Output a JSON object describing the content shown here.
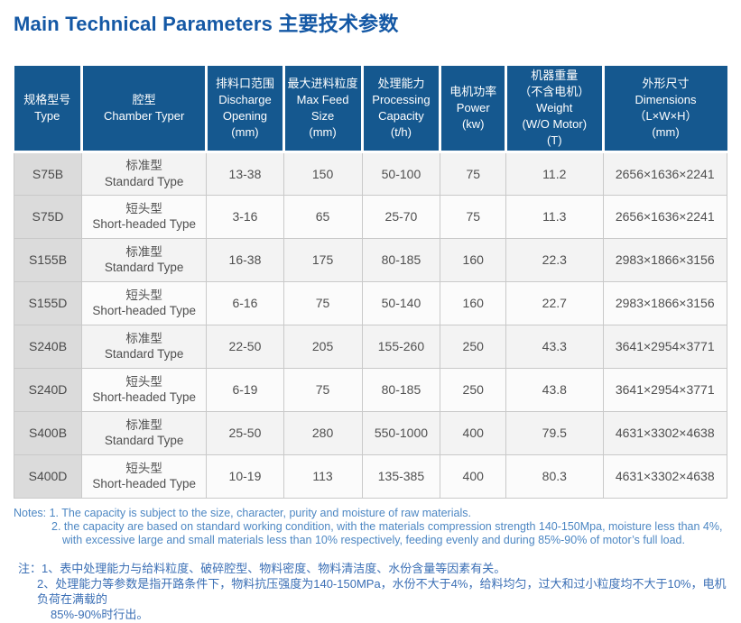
{
  "page": {
    "title": "Main Technical Parameters 主要技术参数"
  },
  "table": {
    "headers": [
      "规格型号\nType",
      "腔型\nChamber Typer",
      "排料口范围\nDischarge\nOpening\n(mm)",
      "最大进料粒度\nMax Feed\nSize\n(mm)",
      "处理能力\nProcessing\nCapacity\n(t/h)",
      "电机功率\nPower\n(kw)",
      "机器重量\n（不含电机）\nWeight\n(W/O Motor)\n(T)",
      "外形尺寸\nDimensions\n（L×W×H）\n(mm)"
    ],
    "rows": [
      [
        "S75B",
        "标准型\nStandard Type",
        "13-38",
        "150",
        "50-100",
        "75",
        "11.2",
        "2656×1636×2241"
      ],
      [
        "S75D",
        "短头型\nShort-headed Type",
        "3-16",
        "65",
        "25-70",
        "75",
        "11.3",
        "2656×1636×2241"
      ],
      [
        "S155B",
        "标准型\nStandard Type",
        "16-38",
        "175",
        "80-185",
        "160",
        "22.3",
        "2983×1866×3156"
      ],
      [
        "S155D",
        "短头型\nShort-headed Type",
        "6-16",
        "75",
        "50-140",
        "160",
        "22.7",
        "2983×1866×3156"
      ],
      [
        "S240B",
        "标准型\nStandard Type",
        "22-50",
        "205",
        "155-260",
        "250",
        "43.3",
        "3641×2954×3771"
      ],
      [
        "S240D",
        "短头型\nShort-headed Type",
        "6-19",
        "75",
        "80-185",
        "250",
        "43.8",
        "3641×2954×3771"
      ],
      [
        "S400B",
        "标准型\nStandard Type",
        "25-50",
        "280",
        "550-1000",
        "400",
        "79.5",
        "4631×3302×4638"
      ],
      [
        "S400D",
        "短头型\nShort-headed Type",
        "10-19",
        "113",
        "135-385",
        "400",
        "80.3",
        "4631×3302×4638"
      ]
    ]
  },
  "notes_en": {
    "line0": "Notes: 1. The capacity is subject to the size, character, purity and moisture of raw materials.",
    "line1": "2. the capacity are based on standard working condition, with the materials compression strength 140-150Mpa, moisture less than 4%,",
    "line2": "with excessive large and small materials less than 10% respectively, feeding evenly and during 85%-90% of motor’s full load."
  },
  "notes_zh": {
    "line0": "注：1、表中处理能力与给料粒度、破碎腔型、物料密度、物料清洁度、水份含量等因素有关。",
    "line1": "2、处理能力等参数是指开路条件下，物料抗压强度为140-150MPa，水份不大于4%，给料均匀，过大和过小粒度均不大于10%，电机负荷在满载的",
    "line2": "85%-90%时行出。"
  },
  "colors": {
    "title_blue": "#1458A5",
    "header_blue": "#15588F",
    "type_column_gray": "#DBDBDB",
    "notes_en_blue": "#4D87C3",
    "notes_zh_blue": "#3B6FB5"
  }
}
